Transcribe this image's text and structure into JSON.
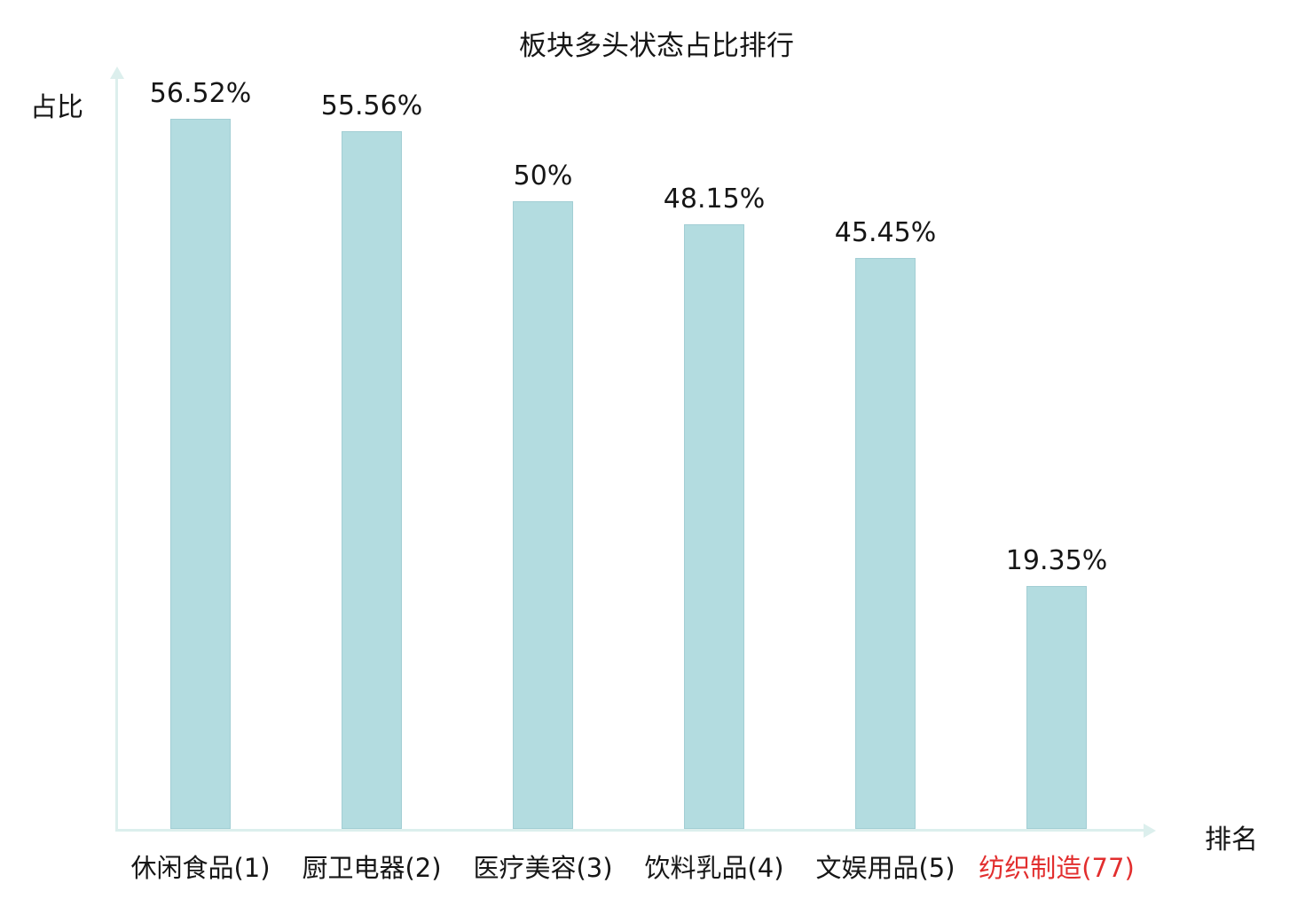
{
  "title": "板块多头状态占比排行",
  "y_axis_label": "占比",
  "x_axis_label": "排名",
  "colors": {
    "bar_fill": "#b3dce0",
    "bar_border": "#a2ced4",
    "axis_line": "#dcefed",
    "text": "#161616",
    "highlight_text": "#e22e2e"
  },
  "chart_data": {
    "type": "bar",
    "title": "板块多头状态占比排行",
    "xlabel": "排名",
    "ylabel": "占比",
    "categories": [
      "休闲食品(1)",
      "厨卫电器(2)",
      "医疗美容(3)",
      "饮料乳品(4)",
      "文娱用品(5)",
      "纺织制造(77)"
    ],
    "values": [
      56.52,
      55.56,
      50,
      48.15,
      45.45,
      19.35
    ],
    "value_labels": [
      "56.52%",
      "55.56%",
      "50%",
      "48.15%",
      "45.45%",
      "19.35%"
    ],
    "ranks": [
      1,
      2,
      3,
      4,
      5,
      77
    ],
    "highlighted_category_index": 5,
    "ylim": [
      0,
      60
    ],
    "grid": false,
    "legend": false,
    "bar_color": "#b3dce0"
  }
}
